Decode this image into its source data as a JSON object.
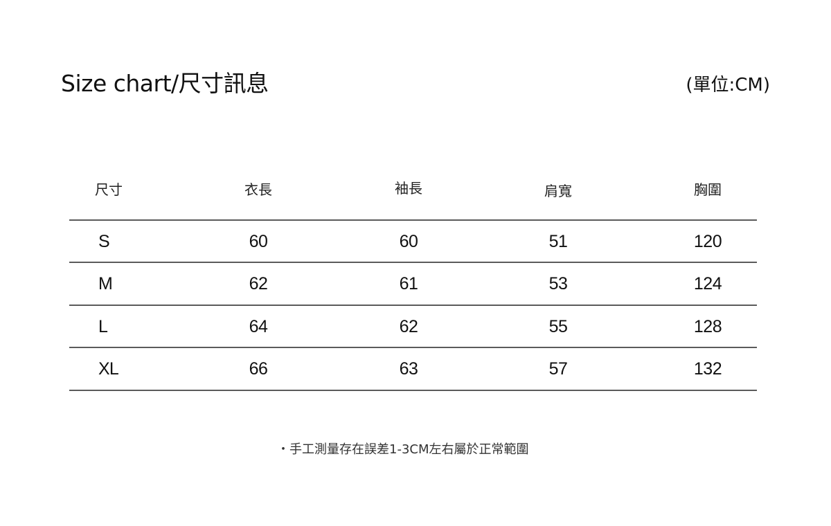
{
  "title": "Size chart/尺寸訊息",
  "unit": "(單位:CM)",
  "table": {
    "headers": [
      "尺寸",
      "衣長",
      "袖長",
      "肩寬",
      "胸圍"
    ],
    "rows": [
      [
        "S",
        "60",
        "60",
        "51",
        "120"
      ],
      [
        "M",
        "62",
        "61",
        "53",
        "124"
      ],
      [
        "L",
        "64",
        "62",
        "55",
        "128"
      ],
      [
        "XL",
        "66",
        "63",
        "57",
        "132"
      ]
    ]
  },
  "note": "・手工測量存在誤差1-3CM左右屬於正常範圍"
}
